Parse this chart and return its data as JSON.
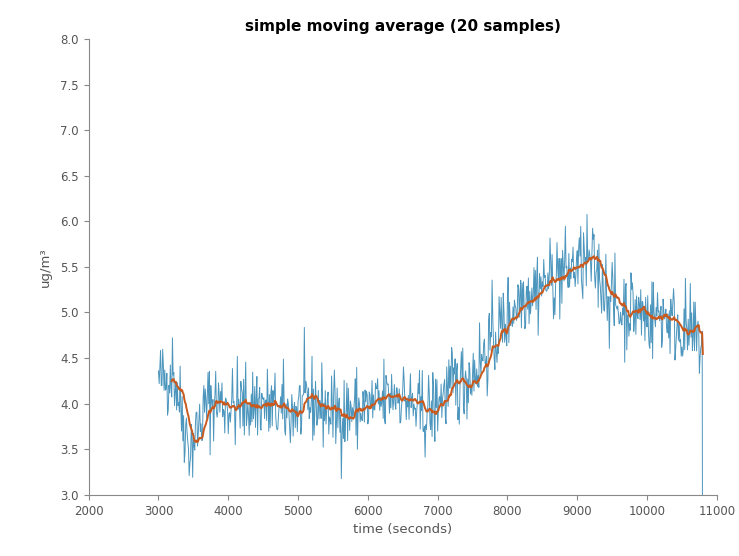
{
  "title": "simple moving average (20 samples)",
  "xlabel": "time (seconds)",
  "ylabel": "ug/m³",
  "xlim": [
    2000,
    11000
  ],
  "ylim": [
    3,
    8
  ],
  "yticks": [
    3,
    3.5,
    4,
    4.5,
    5,
    5.5,
    6,
    6.5,
    7,
    7.5,
    8
  ],
  "xticks": [
    2000,
    3000,
    4000,
    5000,
    6000,
    7000,
    8000,
    9000,
    10000,
    11000
  ],
  "window_size": 20,
  "raw_color": "#4C96BE",
  "ma_color": "#C85A20",
  "raw_linewidth": 0.7,
  "ma_linewidth": 1.4,
  "seed": 42,
  "t_start": 3000,
  "t_end": 10800,
  "dt": 10,
  "background_color": "#ffffff",
  "title_fontsize": 11
}
